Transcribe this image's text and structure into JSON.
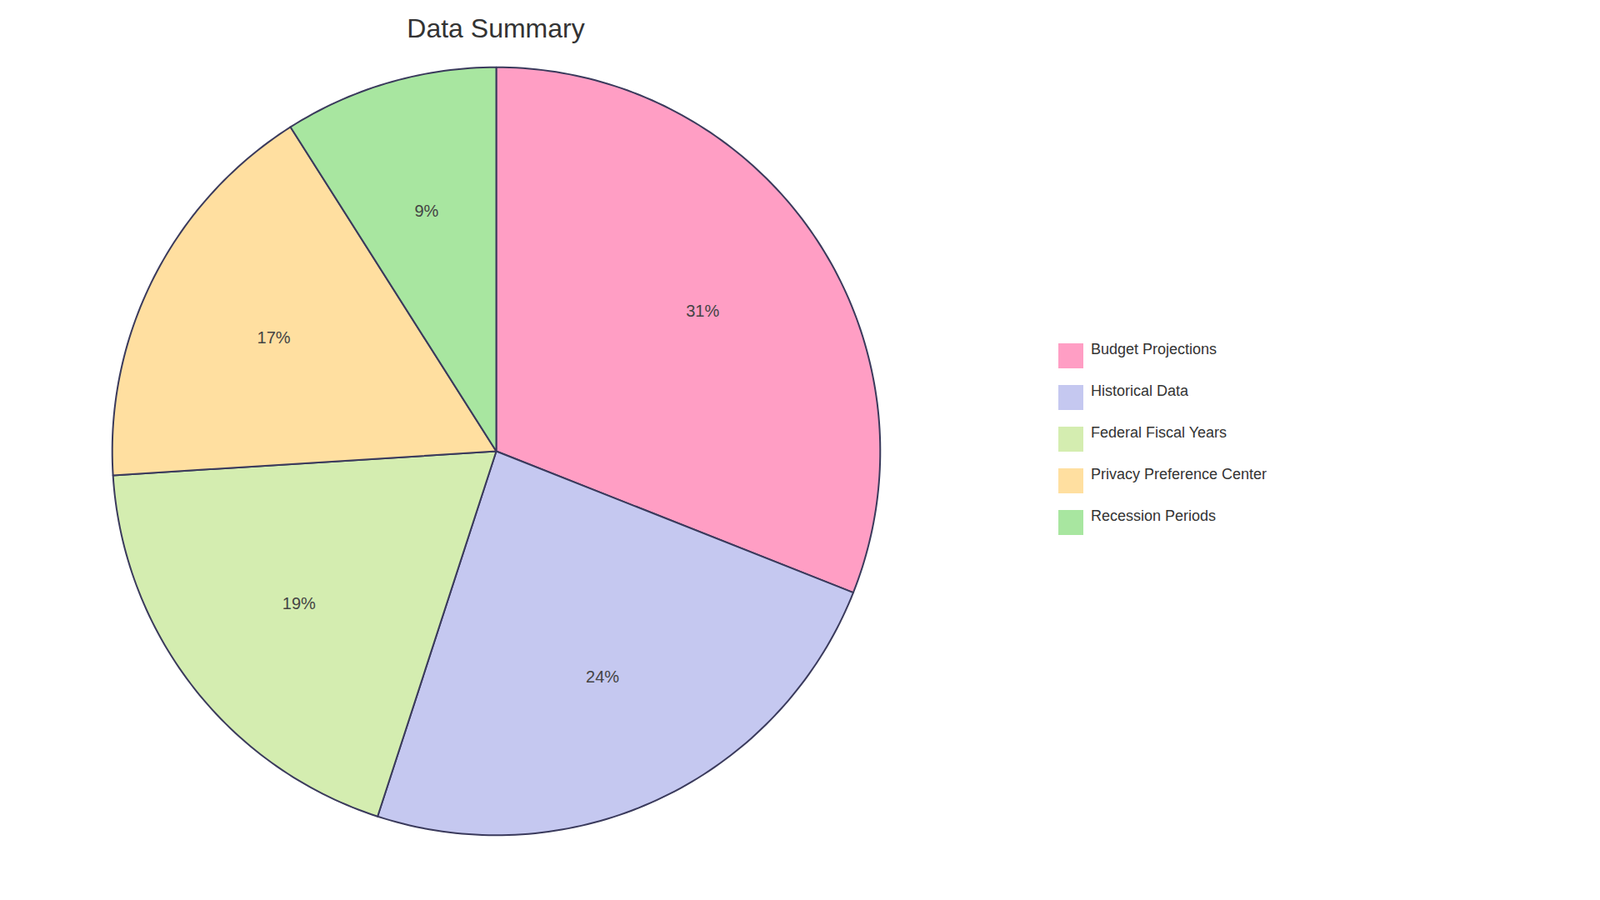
{
  "chart_data": {
    "type": "pie",
    "title": "Data Summary",
    "categories": [
      "Budget Projections",
      "Historical Data",
      "Federal Fiscal Years",
      "Privacy Preference Center",
      "Recession Periods"
    ],
    "values": [
      31,
      24,
      19,
      17,
      9
    ],
    "value_labels": [
      "31%",
      "24%",
      "19%",
      "17%",
      "9%"
    ],
    "colors": [
      "#FF9EC4",
      "#C5C8F0",
      "#D4EDB0",
      "#FFDFA0",
      "#A8E6A0"
    ],
    "data_labels": true,
    "legend": "right"
  }
}
